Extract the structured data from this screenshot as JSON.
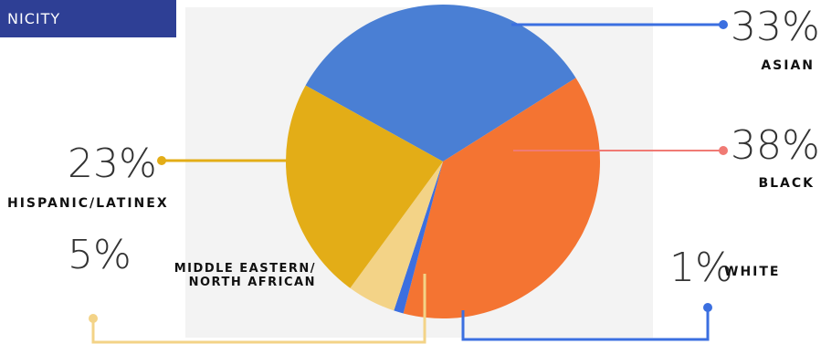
{
  "header": {
    "title": "NICITY"
  },
  "chart_data": {
    "type": "pie",
    "slices": [
      {
        "label": "ASIAN",
        "value": 33,
        "display": "33%",
        "color": "#4a7fd4"
      },
      {
        "label": "BLACK",
        "value": 38,
        "display": "38%",
        "color": "#f47432"
      },
      {
        "label": "WHITE",
        "value": 1,
        "display": "1%",
        "color": "#3b6fe0"
      },
      {
        "label": "MIDDLE EASTERN/ NORTH AFRICAN",
        "value": 5,
        "display": "5%",
        "color": "#f3d387"
      },
      {
        "label": "HISPANIC/LATINEX",
        "value": 23,
        "display": "23%",
        "color": "#e3ad17"
      }
    ]
  }
}
